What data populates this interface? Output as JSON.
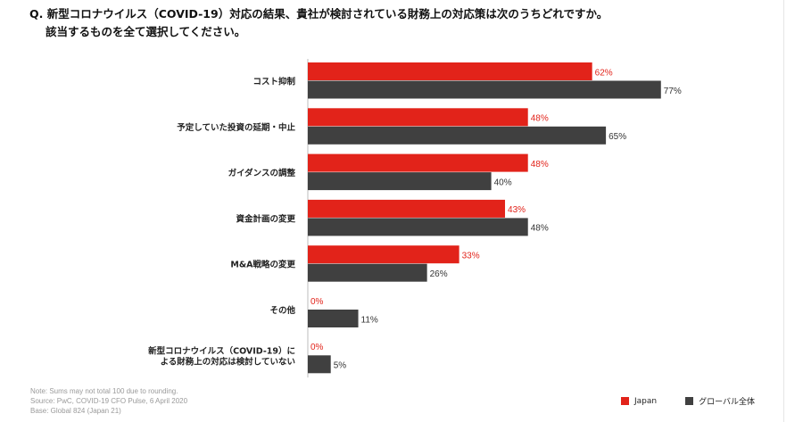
{
  "header": {
    "question_line1": "Q. 新型コロナウイルス（COVID-19）対応の結果、貴社が検討されている財務上の対応策は次のうちどれですか。",
    "question_line2": "該当するものを全て選択してください。"
  },
  "chart_data": {
    "type": "bar",
    "orientation": "horizontal",
    "categories": [
      [
        "コスト抑制"
      ],
      [
        "予定していた投資の延期・中止"
      ],
      [
        "ガイダンスの調整"
      ],
      [
        "資金計画の変更"
      ],
      [
        "M&A戦略の変更"
      ],
      [
        "その他"
      ],
      [
        "新型コロナウイルス（COVID-19）に",
        "よる財務上の対応は検討していない"
      ]
    ],
    "series": [
      {
        "name": "Japan",
        "color": "#e2231a",
        "values": [
          62,
          48,
          48,
          43,
          33,
          0,
          0
        ],
        "labels": [
          "62%",
          "48%",
          "48%",
          "43%",
          "33%",
          "0%",
          "0%"
        ]
      },
      {
        "name": "グローバル全体",
        "color": "#404040",
        "values": [
          77,
          65,
          40,
          48,
          26,
          11,
          5
        ],
        "labels": [
          "77%",
          "65%",
          "40%",
          "48%",
          "26%",
          "11%",
          "5%"
        ]
      }
    ],
    "xlim": [
      0,
      100
    ],
    "grid": false,
    "legend_position": "bottom-right"
  },
  "footer": {
    "note": "Note: Sums may not total 100 due to rounding.",
    "source": "Source: PwC, COVID-19  CFO Pulse, 6 April 2020",
    "base": "Base: Global 824 (Japan 21)"
  }
}
